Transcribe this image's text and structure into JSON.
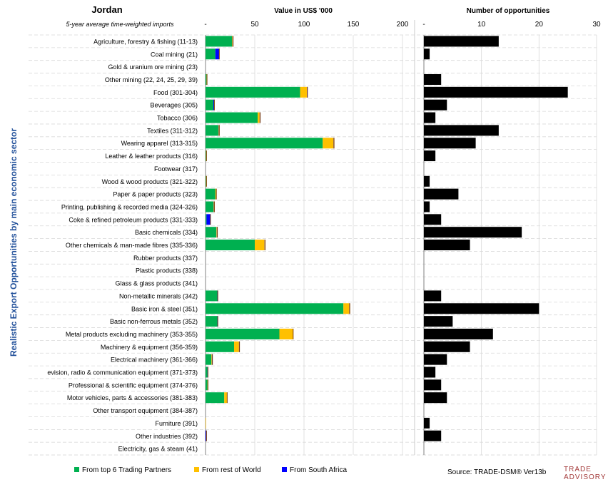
{
  "header": {
    "country": "Jordan",
    "subtitle": "5-year average time-weighted imports",
    "left_title": "Value in US$ '000",
    "right_title": "Number of opportunities"
  },
  "y_axis_title": "Realistic Export Opportunities by main economic sector",
  "source": "Source: TRADE-DSM®  Ver13b",
  "logo": {
    "line1": "TRADE",
    "line2": "ADVISORY",
    "color": "#a33a3a"
  },
  "colors": {
    "top6": "#00b050",
    "row": "#ffc000",
    "sa": "#0000ff",
    "opps": "#000000",
    "ytitle": "#1f4e99"
  },
  "chart_data": [
    {
      "type": "bar",
      "orientation": "horizontal",
      "stacked": true,
      "title": "Value in US$ '000",
      "xlim": [
        0,
        200
      ],
      "xticks": [
        "-",
        "50",
        "100",
        "150",
        "200"
      ],
      "categories": [
        "Agriculture, forestry & fishing (11-13)",
        "Coal mining (21)",
        "Gold & uranium ore mining (23)",
        "Other mining (22, 24, 25, 29, 39)",
        "Food (301-304)",
        "Beverages (305)",
        "Tobacco (306)",
        "Textiles (311-312)",
        "Wearing apparel (313-315)",
        "Leather & leather products (316)",
        "Footwear (317)",
        "Wood & wood products (321-322)",
        "Paper & paper products (323)",
        "Printing, publishing & recorded media (324-326)",
        "Coke & refined petroleum products (331-333)",
        "Basic chemicals (334)",
        "Other chemicals & man-made fibres (335-336)",
        "Rubber products (337)",
        "Plastic products (338)",
        "Glass & glass products (341)",
        "Non-metallic minerals (342)",
        "Basic iron & steel (351)",
        "Basic non-ferrous metals (352)",
        "Metal products excluding machinery (353-355)",
        "Machinery & equipment (356-359)",
        "Electrical machinery (361-366)",
        "evision, radio & communication equipment (371-373)",
        "Professional & scientific equipment (374-376)",
        "Motor vehicles, parts & accessories (381-383)",
        "Other transport equipment (384-387)",
        "Furniture (391)",
        "Other industries (392)",
        "Electricity, gas & steam (41)"
      ],
      "series": [
        {
          "name": "From top 6 Trading Partners",
          "color": "#00b050",
          "values": [
            27,
            10,
            0,
            1,
            96,
            8,
            53,
            13,
            119,
            0.5,
            0,
            0.5,
            10,
            8,
            1,
            11,
            50,
            0,
            0,
            0,
            12,
            140,
            12,
            75,
            29,
            6,
            2,
            2,
            19,
            0,
            0,
            0,
            0
          ]
        },
        {
          "name": "From rest of World",
          "color": "#ffc000",
          "values": [
            0.5,
            0,
            0,
            0.5,
            7,
            0,
            2,
            0.5,
            11,
            0.5,
            0,
            0.5,
            1,
            0.5,
            0,
            0.5,
            10,
            0,
            0,
            0,
            0,
            6,
            0,
            14,
            5,
            0.5,
            0,
            0.5,
            3,
            0,
            0.5,
            0,
            0
          ]
        },
        {
          "name": "From South Africa",
          "color": "#0000ff",
          "values": [
            0.5,
            4,
            0,
            0,
            0.5,
            1,
            0.5,
            0.5,
            0.5,
            0,
            0,
            0,
            0,
            0.5,
            4,
            0.5,
            0.5,
            0,
            0,
            0,
            0.5,
            0.5,
            0.5,
            0,
            0.5,
            0.5,
            0.5,
            0,
            0,
            0,
            0,
            1,
            0
          ]
        }
      ],
      "legend": "bottom"
    },
    {
      "type": "bar",
      "orientation": "horizontal",
      "title": "Number of opportunities",
      "xlim": [
        0,
        30
      ],
      "xticks": [
        "-",
        "10",
        "20",
        "30"
      ],
      "series": [
        {
          "name": "Number of opportunities",
          "color": "#000000",
          "values": [
            13,
            1,
            0,
            3,
            25,
            4,
            2,
            13,
            9,
            2,
            0,
            1,
            6,
            1,
            3,
            17,
            8,
            0,
            0,
            0,
            3,
            20,
            5,
            12,
            8,
            4,
            2,
            3,
            4,
            0,
            1,
            3,
            0
          ]
        }
      ]
    }
  ]
}
